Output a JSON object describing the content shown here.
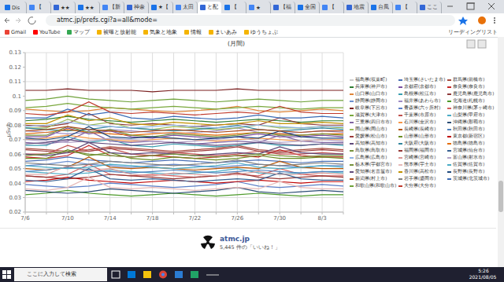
{
  "browser": {
    "tabs": [
      "Dis",
      "【",
      "★★",
      "★★",
      "【新",
      "神奈",
      "★【",
      "太田",
      "と配",
      "【",
      "★",
      "【福",
      "全国",
      "【",
      "地震",
      "台風",
      "【",
      "ここ"
    ],
    "url": "atmc.jp/prefs.cgi?a=all&mode=",
    "bookmarks": [
      "Gmail",
      "YouTube",
      "マップ",
      "被曝と放射能",
      "気象と地象",
      "情報",
      "まいあみ",
      "ゆうちょぶ"
    ],
    "reading_list": "リーディングリスト"
  },
  "chart_data": {
    "type": "line",
    "title": "(月間)",
    "y_label": "μSv/h",
    "grid": true,
    "legend": "right",
    "marker": "none",
    "categories": [
      "7/6",
      null,
      "7/10",
      null,
      "7/14",
      null,
      "7/18",
      null,
      "7/22",
      null,
      "7/26",
      null,
      "7/30",
      null,
      "8/3",
      null
    ],
    "ylim": [
      0.02,
      0.13
    ],
    "yticks": [
      0.02,
      0.03,
      0.04,
      0.05,
      0.06,
      0.07,
      0.08,
      0.09,
      0.1,
      0.11,
      0.12,
      0.13
    ],
    "series": [
      {
        "name": "福島県(双葉町)",
        "color": "#cccccc",
        "values": [
          null,
          null,
          null,
          null,
          null,
          null,
          null,
          null,
          null,
          null,
          null,
          null,
          null,
          null,
          null,
          null
        ]
      },
      {
        "name": "埼玉県(さいたま市)",
        "color": "#4a6fb5",
        "values": [
          0.055,
          0.056,
          0.058,
          0.056,
          0.055,
          0.054,
          0.055,
          0.056,
          0.055,
          0.054,
          0.055,
          0.056,
          0.055,
          0.054,
          0.055,
          0.055
        ]
      },
      {
        "name": "群馬県(前橋市)",
        "color": "#a84a3c",
        "values": [
          0.064,
          0.063,
          0.062,
          0.063,
          0.065,
          0.064,
          0.063,
          0.062,
          0.063,
          0.064,
          0.066,
          0.063,
          0.062,
          0.063,
          0.064,
          0.063
        ]
      },
      {
        "name": "兵庫県(神戸市)",
        "color": "#2e7d32",
        "values": [
          0.083,
          0.084,
          0.086,
          0.084,
          0.083,
          0.082,
          0.083,
          0.084,
          0.083,
          0.082,
          0.083,
          0.084,
          0.083,
          0.082,
          0.083,
          0.083
        ]
      },
      {
        "name": "京都府(京都市)",
        "color": "#7b4fa0",
        "values": [
          0.072,
          0.072,
          0.078,
          0.074,
          0.076,
          0.072,
          0.071,
          0.073,
          0.072,
          0.071,
          0.072,
          0.074,
          0.072,
          0.072,
          0.073,
          0.072
        ]
      },
      {
        "name": "奈良県(奈良市)",
        "color": "#c62828",
        "values": [
          0.058,
          0.057,
          0.059,
          0.066,
          0.059,
          0.058,
          0.059,
          0.058,
          0.057,
          0.058,
          0.059,
          0.058,
          0.063,
          0.059,
          0.058,
          0.058
        ]
      },
      {
        "name": "山口県(山口市)",
        "color": "#e0863a",
        "values": [
          0.091,
          0.09,
          0.089,
          0.09,
          0.092,
          0.091,
          0.09,
          0.089,
          0.09,
          0.091,
          0.093,
          0.09,
          0.089,
          0.09,
          0.091,
          0.09
        ]
      },
      {
        "name": "島根県(松江市)",
        "color": "#3a9fb0",
        "values": [
          0.066,
          0.066,
          0.072,
          0.068,
          0.07,
          0.066,
          0.065,
          0.067,
          0.066,
          0.065,
          0.066,
          0.068,
          0.066,
          0.066,
          0.067,
          0.066
        ]
      },
      {
        "name": "鹿児島県(鹿児島市)",
        "color": "#8e3a3a",
        "values": [
          0.08,
          0.079,
          0.081,
          0.088,
          0.081,
          0.08,
          0.081,
          0.08,
          0.079,
          0.08,
          0.081,
          0.08,
          0.085,
          0.081,
          0.08,
          0.08
        ]
      },
      {
        "name": "静岡県(静岡市)",
        "color": "#6a8fd0",
        "values": [
          0.052,
          0.053,
          0.055,
          0.053,
          0.052,
          0.051,
          0.052,
          0.053,
          0.052,
          0.051,
          0.052,
          0.053,
          0.052,
          0.051,
          0.052,
          0.052
        ]
      },
      {
        "name": "福井県(あわら市)",
        "color": "#9c8bc4",
        "values": [
          0.076,
          0.075,
          0.074,
          0.075,
          0.077,
          0.076,
          0.075,
          0.074,
          0.075,
          0.076,
          0.078,
          0.075,
          0.074,
          0.075,
          0.076,
          0.075
        ]
      },
      {
        "name": "北海道(札幌市)",
        "color": "#4c9a2a",
        "values": [
          0.032,
          0.033,
          0.035,
          0.033,
          0.032,
          0.031,
          0.032,
          0.033,
          0.032,
          0.031,
          0.032,
          0.033,
          0.032,
          0.031,
          0.032,
          0.032
        ]
      },
      {
        "name": "岐阜県(下呂市)",
        "color": "#7a1f1f",
        "values": [
          0.104,
          0.104,
          0.105,
          0.104,
          0.104,
          0.104,
          0.103,
          0.104,
          0.104,
          0.104,
          0.105,
          0.104,
          0.104,
          0.104,
          0.104,
          0.104
        ]
      },
      {
        "name": "青森県(六ヶ所村)",
        "color": "#5b7fc7",
        "values": [
          0.039,
          0.038,
          0.037,
          0.038,
          0.04,
          0.039,
          0.038,
          0.037,
          0.038,
          0.039,
          0.041,
          0.038,
          0.037,
          0.038,
          0.039,
          0.038
        ]
      },
      {
        "name": "神奈川県(茅ヶ崎市)",
        "color": "#d35f5f",
        "values": [
          0.045,
          0.044,
          0.046,
          0.053,
          0.046,
          0.045,
          0.046,
          0.045,
          0.044,
          0.045,
          0.046,
          0.045,
          0.05,
          0.046,
          0.045,
          0.045
        ]
      },
      {
        "name": "滋賀県(大津市)",
        "color": "#7aa83d",
        "values": [
          0.092,
          0.093,
          0.095,
          0.093,
          0.092,
          0.091,
          0.092,
          0.093,
          0.092,
          0.091,
          0.092,
          0.093,
          0.092,
          0.091,
          0.092,
          0.092
        ]
      },
      {
        "name": "千葉県(市原市)",
        "color": "#c0504d",
        "values": [
          0.06,
          0.06,
          0.066,
          0.062,
          0.064,
          0.06,
          0.059,
          0.061,
          0.06,
          0.059,
          0.06,
          0.062,
          0.06,
          0.06,
          0.061,
          0.06
        ]
      },
      {
        "name": "山梨県(甲府市)",
        "color": "#4bacc6",
        "values": [
          0.048,
          0.047,
          0.046,
          0.047,
          0.049,
          0.048,
          0.047,
          0.046,
          0.047,
          0.048,
          0.05,
          0.047,
          0.046,
          0.047,
          0.048,
          0.047
        ]
      },
      {
        "name": "三重県(四日市市)",
        "color": "#8064a2",
        "values": [
          0.068,
          0.067,
          0.069,
          0.076,
          0.069,
          0.068,
          0.069,
          0.068,
          0.067,
          0.068,
          0.069,
          0.068,
          0.073,
          0.069,
          0.068,
          0.068
        ]
      },
      {
        "name": "石川県(金沢市)",
        "color": "#f79646",
        "values": [
          0.07,
          0.071,
          0.073,
          0.071,
          0.07,
          0.069,
          0.07,
          0.071,
          0.07,
          0.069,
          0.07,
          0.071,
          0.07,
          0.069,
          0.07,
          0.07
        ]
      },
      {
        "name": "沖縄県(那覇市)",
        "color": "#2c4d75",
        "values": [
          0.035,
          0.034,
          0.033,
          0.034,
          0.036,
          0.035,
          0.034,
          0.033,
          0.034,
          0.035,
          0.037,
          0.034,
          0.033,
          0.034,
          0.035,
          0.034
        ]
      },
      {
        "name": "岡山県(岡山市)",
        "color": "#9bbb59",
        "values": [
          0.078,
          0.078,
          0.084,
          0.08,
          0.082,
          0.078,
          0.077,
          0.079,
          0.078,
          0.077,
          0.078,
          0.08,
          0.078,
          0.078,
          0.079,
          0.078
        ]
      },
      {
        "name": "長崎県(長崎市)",
        "color": "#b65708",
        "values": [
          0.05,
          0.049,
          0.051,
          0.058,
          0.051,
          0.05,
          0.051,
          0.05,
          0.049,
          0.05,
          0.051,
          0.05,
          0.055,
          0.051,
          0.05,
          0.05
        ]
      },
      {
        "name": "秋田県(秋田市)",
        "color": "#4f81bd",
        "values": [
          0.048,
          0.049,
          0.051,
          0.049,
          0.048,
          0.047,
          0.048,
          0.049,
          0.048,
          0.047,
          0.048,
          0.049,
          0.048,
          0.047,
          0.048,
          0.048
        ]
      },
      {
        "name": "愛媛県(松山市)",
        "color": "#9d3a3a",
        "values": [
          0.063,
          0.062,
          0.061,
          0.062,
          0.064,
          0.063,
          0.062,
          0.061,
          0.062,
          0.063,
          0.065,
          0.062,
          0.061,
          0.062,
          0.063,
          0.062
        ]
      },
      {
        "name": "山形県(山形市)",
        "color": "#6b8e23",
        "values": [
          0.057,
          0.057,
          0.063,
          0.059,
          0.061,
          0.057,
          0.056,
          0.058,
          0.057,
          0.056,
          0.057,
          0.059,
          0.057,
          0.057,
          0.058,
          0.057
        ]
      },
      {
        "name": "東京都(新宿区)",
        "color": "#c00000",
        "values": [
          0.041,
          0.042,
          0.044,
          0.042,
          0.041,
          0.04,
          0.041,
          0.042,
          0.041,
          0.04,
          0.041,
          0.042,
          0.041,
          0.04,
          0.041,
          0.041
        ]
      },
      {
        "name": "高知県(高知市)",
        "color": "#5f497a",
        "values": [
          0.06,
          0.059,
          0.061,
          0.068,
          0.061,
          0.06,
          0.061,
          0.06,
          0.059,
          0.06,
          0.061,
          0.06,
          0.065,
          0.061,
          0.06,
          0.06
        ]
      },
      {
        "name": "大阪府(大阪市)",
        "color": "#31859c",
        "values": [
          0.078,
          0.077,
          0.076,
          0.077,
          0.079,
          0.078,
          0.077,
          0.076,
          0.077,
          0.078,
          0.08,
          0.077,
          0.076,
          0.077,
          0.078,
          0.077
        ]
      },
      {
        "name": "徳島県(徳島市)",
        "color": "#e46c0a",
        "values": [
          0.074,
          0.075,
          0.077,
          0.075,
          0.074,
          0.073,
          0.074,
          0.075,
          0.074,
          0.073,
          0.074,
          0.075,
          0.074,
          0.073,
          0.074,
          0.074
        ]
      },
      {
        "name": "鳥取県(鳥取市)",
        "color": "#77933c",
        "values": [
          0.073,
          0.073,
          0.079,
          0.075,
          0.077,
          0.073,
          0.072,
          0.074,
          0.073,
          0.072,
          0.073,
          0.075,
          0.073,
          0.073,
          0.074,
          0.073
        ]
      },
      {
        "name": "福岡県(福岡市)",
        "color": "#953735",
        "values": [
          0.045,
          0.044,
          0.043,
          0.044,
          0.046,
          0.045,
          0.044,
          0.043,
          0.044,
          0.045,
          0.047,
          0.044,
          0.043,
          0.044,
          0.045,
          0.044
        ]
      },
      {
        "name": "宮城県(仙台市)",
        "color": "#376092",
        "values": [
          0.042,
          0.041,
          0.043,
          0.05,
          0.043,
          0.042,
          0.043,
          0.042,
          0.041,
          0.042,
          0.043,
          0.042,
          0.047,
          0.043,
          0.042,
          0.042
        ]
      },
      {
        "name": "広島県(広島市)",
        "color": "#8eb4e3",
        "values": [
          0.079,
          0.08,
          0.082,
          0.08,
          0.079,
          0.078,
          0.079,
          0.08,
          0.079,
          0.078,
          0.079,
          0.08,
          0.079,
          0.078,
          0.079,
          0.079
        ]
      },
      {
        "name": "宮崎県(宮崎市)",
        "color": "#d99694",
        "values": [
          0.046,
          0.046,
          0.052,
          0.048,
          0.05,
          0.046,
          0.045,
          0.047,
          0.046,
          0.045,
          0.046,
          0.048,
          0.046,
          0.046,
          0.047,
          0.046
        ]
      },
      {
        "name": "富山県(射水市)",
        "color": "#b3a2c7",
        "values": [
          0.07,
          0.069,
          0.068,
          0.069,
          0.071,
          0.07,
          0.069,
          0.068,
          0.069,
          0.07,
          0.072,
          0.069,
          0.068,
          0.069,
          0.07,
          0.069
        ]
      },
      {
        "name": "栃木県(宇都宮市)",
        "color": "#76923c",
        "values": [
          0.059,
          0.06,
          0.062,
          0.06,
          0.059,
          0.058,
          0.059,
          0.06,
          0.059,
          0.058,
          0.059,
          0.06,
          0.059,
          0.058,
          0.059,
          0.059
        ]
      },
      {
        "name": "熊本県(宇土市)",
        "color": "#e6b9b8",
        "values": [
          0.036,
          0.035,
          0.037,
          0.044,
          0.037,
          0.036,
          0.037,
          0.036,
          0.035,
          0.036,
          0.037,
          0.036,
          0.041,
          0.037,
          0.036,
          0.036
        ]
      },
      {
        "name": "佐賀県(佐賀市)",
        "color": "#4aacc6",
        "values": [
          0.052,
          0.051,
          0.05,
          0.051,
          0.053,
          0.052,
          0.051,
          0.05,
          0.051,
          0.052,
          0.054,
          0.051,
          0.05,
          0.051,
          0.052,
          0.051
        ]
      },
      {
        "name": "愛知県(名古屋市)",
        "color": "#604a7b",
        "values": [
          0.067,
          0.068,
          0.07,
          0.068,
          0.067,
          0.066,
          0.067,
          0.068,
          0.067,
          0.066,
          0.067,
          0.068,
          0.067,
          0.066,
          0.067,
          0.067
        ]
      },
      {
        "name": "香川県(高松市)",
        "color": "#c09100",
        "values": [
          0.081,
          0.081,
          0.087,
          0.083,
          0.085,
          0.081,
          0.08,
          0.082,
          0.081,
          0.08,
          0.081,
          0.083,
          0.081,
          0.081,
          0.082,
          0.081
        ]
      },
      {
        "name": "長野県(長野市)",
        "color": "#1f497d",
        "values": [
          0.071,
          0.07,
          0.072,
          0.079,
          0.072,
          0.071,
          0.072,
          0.071,
          0.07,
          0.071,
          0.072,
          0.071,
          0.076,
          0.072,
          0.071,
          0.071
        ]
      },
      {
        "name": "新潟県(村上市)",
        "color": "#ab4b1f",
        "values": [
          0.076,
          0.077,
          0.079,
          0.077,
          0.076,
          0.075,
          0.076,
          0.077,
          0.076,
          0.075,
          0.076,
          0.077,
          0.076,
          0.075,
          0.076,
          0.076
        ]
      },
      {
        "name": "岩手県(盛岡市)",
        "color": "#7f7f7f",
        "values": [
          0.054,
          0.053,
          0.052,
          0.053,
          0.055,
          0.054,
          0.053,
          0.052,
          0.053,
          0.054,
          0.056,
          0.053,
          0.052,
          0.053,
          0.054,
          0.053
        ]
      },
      {
        "name": "茨城県(北茨城市)",
        "color": "#3b6bb5",
        "values": [
          0.085,
          0.085,
          0.091,
          0.087,
          0.089,
          0.085,
          0.084,
          0.086,
          0.085,
          0.084,
          0.085,
          0.087,
          0.085,
          0.085,
          0.086,
          0.085
        ]
      },
      {
        "name": "和歌山県(和歌山市)",
        "color": "#6fa23a",
        "values": [
          0.097,
          0.098,
          0.1,
          0.098,
          0.097,
          0.096,
          0.097,
          0.098,
          0.097,
          0.096,
          0.097,
          0.098,
          0.097,
          0.096,
          0.097,
          0.097
        ]
      },
      {
        "name": "大分県(大分市)",
        "color": "#c0392b",
        "values": [
          0.088,
          0.087,
          0.089,
          0.096,
          0.089,
          0.088,
          0.089,
          0.088,
          0.087,
          0.088,
          0.089,
          0.088,
          0.093,
          0.089,
          0.088,
          0.088
        ]
      }
    ]
  },
  "page_footer": {
    "site": "atmc.jp",
    "likes": "5,445 件の「いいね！」"
  },
  "taskbar": {
    "search": "ここに入力して検索",
    "time": "5:26",
    "date": "2021/08/05"
  }
}
